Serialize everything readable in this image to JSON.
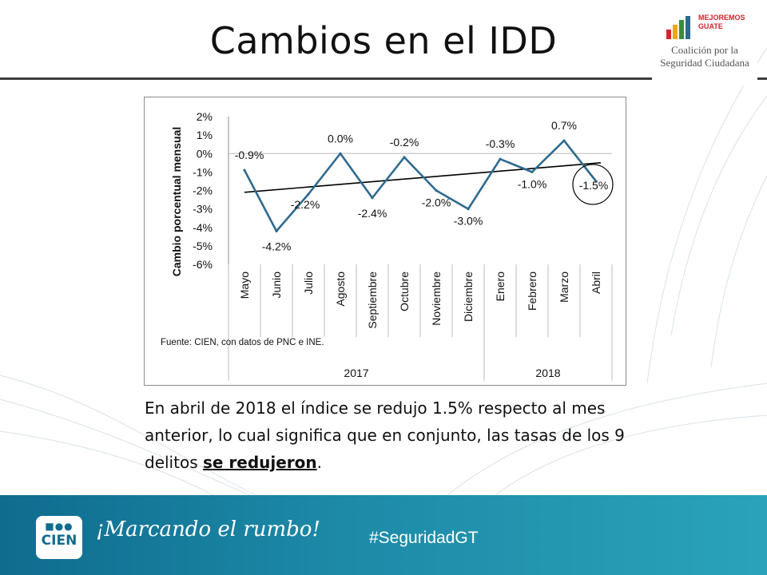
{
  "slide": {
    "title": "Cambios en el IDD",
    "caption_part1": "En abril de 2018 el índice se redujo 1.5% respecto al mes anterior, lo cual significa que en conjunto,  las tasas de los 9 delitos ",
    "caption_emph": "se redujeron",
    "caption_end": "."
  },
  "footer": {
    "logo_text": "CIEN",
    "slogan": "¡Marcando el rumbo!",
    "hashtag": "#SeguridadGT",
    "coalition_brand_line1": "MEJOREMOS",
    "coalition_brand_line2": "GUATE",
    "coalition_line1": "Coalición por la",
    "coalition_line2": "Seguridad Ciudadana"
  },
  "colors": {
    "series": "#2e6a8e",
    "trend": "#000000",
    "footer_start": "#0f6c8f",
    "footer_end": "#2aa3b8"
  },
  "chart_data": {
    "type": "line",
    "categories": [
      "Mayo",
      "Junio",
      "Julio",
      "Agosto",
      "Septiembre",
      "Octubre",
      "Noviembre",
      "Diciembre",
      "Enero",
      "Febrero",
      "Marzo",
      "Abril"
    ],
    "values": [
      -0.9,
      -4.2,
      -2.2,
      0.0,
      -2.4,
      -0.2,
      -2.0,
      -3.0,
      -0.3,
      -1.0,
      0.7,
      -1.5
    ],
    "data_labels": [
      "-0.9%",
      "-4.2%",
      "-2.2%",
      "0.0%",
      "-2.4%",
      "-0.2%",
      "-2.0%",
      "-3.0%",
      "-0.3%",
      "-1.0%",
      "0.7%",
      "-1.5%"
    ],
    "ylabel": "Cambio porcentual mensual",
    "ylim": [
      -6,
      2
    ],
    "yticks": [
      2,
      1,
      0,
      -1,
      -2,
      -3,
      -4,
      -5,
      -6
    ],
    "ytick_labels": [
      "2%",
      "1%",
      "0%",
      "-1%",
      "-2%",
      "-3%",
      "-4%",
      "-5%",
      "-6%"
    ],
    "year_groups": [
      {
        "label": "2017",
        "start": 0,
        "end": 7
      },
      {
        "label": "2018",
        "start": 8,
        "end": 11
      }
    ],
    "trendline": {
      "start": -2.1,
      "end": -0.5
    },
    "highlight_index": 11,
    "source": "Fuente: CIEN, con datos de PNC e INE."
  }
}
